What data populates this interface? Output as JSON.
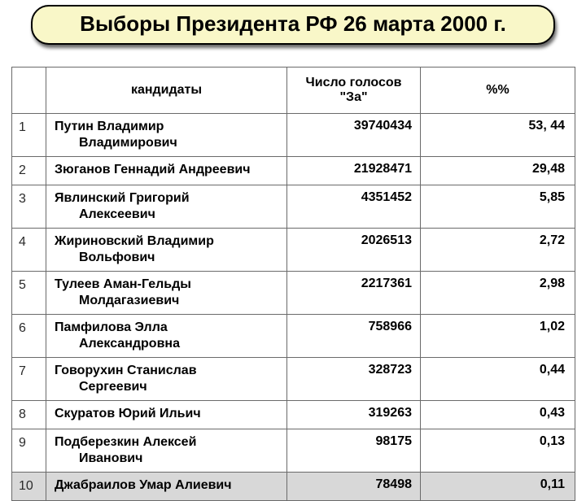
{
  "title": "Выборы Президента РФ 26 марта 2000 г.",
  "headers": {
    "num": "",
    "candidates": "кандидаты",
    "votes": "Число голосов \"За\"",
    "percent": "%%"
  },
  "rows": [
    {
      "n": "1",
      "name1": "Путин Владимир",
      "name2": "Владимирович",
      "votes": "39740434",
      "pct": "53, 44"
    },
    {
      "n": "2",
      "name1": "Зюганов Геннадий Андреевич",
      "name2": "",
      "votes": "21928471",
      "pct": "29,48"
    },
    {
      "n": "3",
      "name1": "Явлинский Григорий",
      "name2": "Алексеевич",
      "votes": "4351452",
      "pct": "5,85"
    },
    {
      "n": "4",
      "name1": "Жириновский Владимир",
      "name2": "Вольфович",
      "votes": "2026513",
      "pct": "2,72"
    },
    {
      "n": "5",
      "name1": "Тулеев Аман-Гельды",
      "name2": "Молдагазиевич",
      "votes": "2217361",
      "pct": "2,98"
    },
    {
      "n": "6",
      "name1": "Памфилова Элла",
      "name2": "Александровна",
      "votes": "758966",
      "pct": "1,02"
    },
    {
      "n": "7",
      "name1": "Говорухин Станислав",
      "name2": "Сергеевич",
      "votes": "328723",
      "pct": "0,44"
    },
    {
      "n": "8",
      "name1": "Скуратов Юрий Ильич",
      "name2": "",
      "votes": "319263",
      "pct": "0,43"
    },
    {
      "n": "9",
      "name1": "Подберезкин Алексей",
      "name2": "Иванович",
      "votes": "98175",
      "pct": "0,13"
    },
    {
      "n": "10",
      "name1": "Джабраилов Умар Алиевич",
      "name2": "",
      "votes": "78498",
      "pct": "0,11"
    }
  ]
}
